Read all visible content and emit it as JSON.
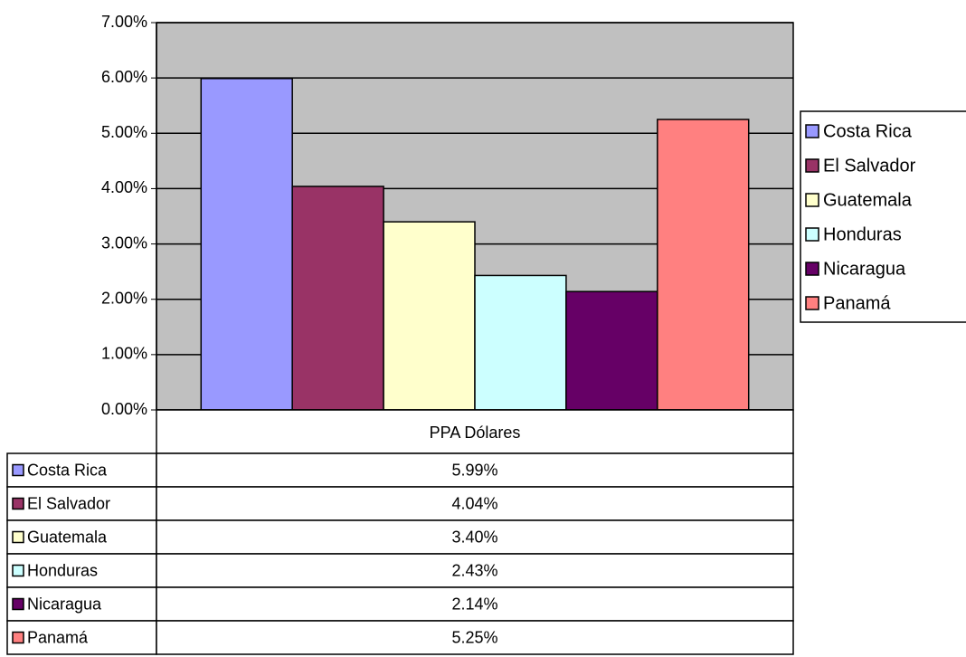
{
  "chart_data": {
    "type": "bar",
    "categories": [
      "PPA Dólares"
    ],
    "series": [
      {
        "name": "Costa Rica",
        "color": "#9999ff",
        "values": [
          5.99
        ],
        "value_labels": [
          "5.99%"
        ]
      },
      {
        "name": "El Salvador",
        "color": "#993366",
        "values": [
          4.04
        ],
        "value_labels": [
          "4.04%"
        ]
      },
      {
        "name": "Guatemala",
        "color": "#ffffcc",
        "values": [
          3.4
        ],
        "value_labels": [
          "3.40%"
        ]
      },
      {
        "name": "Honduras",
        "color": "#ccffff",
        "values": [
          2.43
        ],
        "value_labels": [
          "2.43%"
        ]
      },
      {
        "name": "Nicaragua",
        "color": "#660066",
        "values": [
          2.14
        ],
        "value_labels": [
          "2.14%"
        ]
      },
      {
        "name": "Panamá",
        "color": "#ff8080",
        "values": [
          5.25
        ],
        "value_labels": [
          "5.25%"
        ]
      }
    ],
    "ylim": [
      0,
      7
    ],
    "yticks": [
      {
        "value": 0,
        "label": "0.00%"
      },
      {
        "value": 1,
        "label": "1.00%"
      },
      {
        "value": 2,
        "label": "2.00%"
      },
      {
        "value": 3,
        "label": "3.00%"
      },
      {
        "value": 4,
        "label": "4.00%"
      },
      {
        "value": 5,
        "label": "5.00%"
      },
      {
        "value": 6,
        "label": "6.00%"
      },
      {
        "value": 7,
        "label": "7.00%"
      }
    ],
    "grid": true,
    "plot_background": "#c0c0c0",
    "legend": "right",
    "data_table": true
  }
}
